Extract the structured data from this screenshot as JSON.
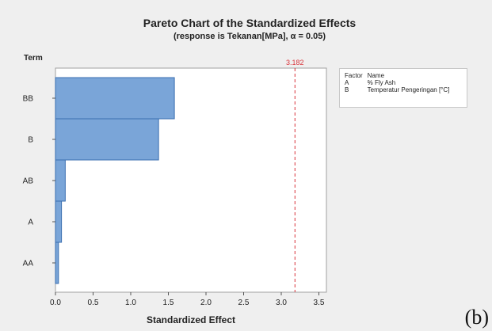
{
  "chart_data": {
    "type": "bar",
    "orientation": "horizontal",
    "title": "Pareto Chart of the Standardized Effects",
    "subtitle": "(response is Tekanan[MPa], α = 0.05)",
    "xlabel": "Standardized Effect",
    "ylabel": "Term",
    "categories": [
      "BB",
      "B",
      "AB",
      "A",
      "AA"
    ],
    "values": [
      1.58,
      1.37,
      0.13,
      0.08,
      0.04
    ],
    "xlim": [
      0,
      3.6
    ],
    "xticks": [
      "0.0",
      "0.5",
      "1.0",
      "1.5",
      "2.0",
      "2.5",
      "3.0",
      "3.5"
    ],
    "reference_line": {
      "value": 3.182,
      "label": "3.182",
      "color": "#d9343b"
    },
    "bar_color": "#7aa5d8",
    "grid": false,
    "legend_position": "right",
    "legend": {
      "header": [
        "Factor",
        "Name"
      ],
      "rows": [
        [
          "A",
          "% Fly Ash"
        ],
        [
          "B",
          "Temperatur Pengeringan [°C]"
        ]
      ]
    }
  },
  "figure_tag": "(b)"
}
